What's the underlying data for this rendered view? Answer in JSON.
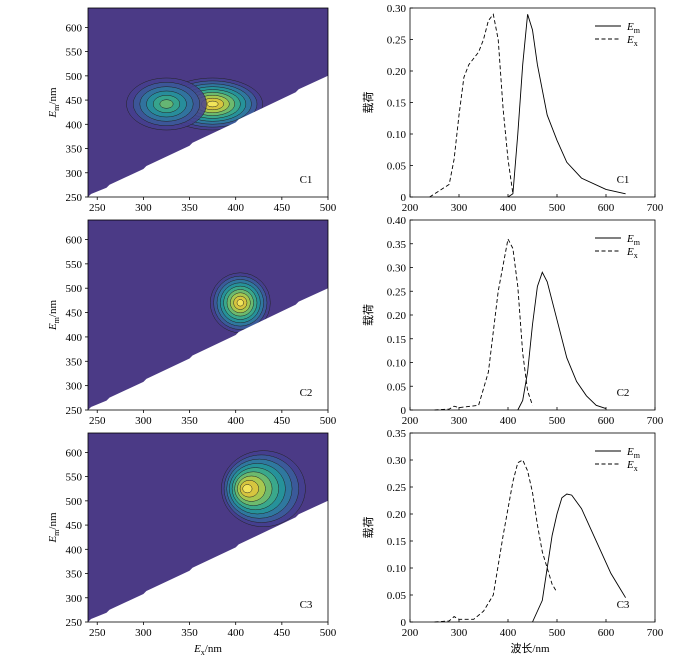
{
  "figure": {
    "contour_xlabel": "Ex/nm",
    "contour_ylabel": "Em/nm",
    "loading_ylabel": "载荷",
    "loading_xlabel": "波长/nm",
    "legend": {
      "em": "Em",
      "ex": "Ex"
    }
  },
  "colors": {
    "background": "#4b3a86",
    "levels": [
      "#4b3a86",
      "#453f8f",
      "#3b5a9a",
      "#2f789f",
      "#26929a",
      "#3aa88b",
      "#6dba6e",
      "#a8c84f",
      "#d7c53f",
      "#f2e45a"
    ]
  },
  "chart_data": [
    {
      "type": "heatmap",
      "label": "C1",
      "xlim": [
        240,
        500
      ],
      "ylim": [
        250,
        640
      ],
      "xticks": [
        250,
        300,
        350,
        400,
        450,
        500
      ],
      "yticks": [
        250,
        300,
        350,
        400,
        450,
        500,
        550,
        600
      ],
      "peaks": [
        {
          "ex": 375,
          "em": 442,
          "amp": 1.0
        },
        {
          "ex": 325,
          "em": 442,
          "amp": 0.75
        }
      ]
    },
    {
      "type": "line",
      "label": "C1",
      "xlim": [
        200,
        700
      ],
      "ylim": [
        0,
        0.3
      ],
      "xticks": [
        200,
        300,
        400,
        500,
        600,
        700
      ],
      "yticks": [
        0,
        0.05,
        0.1,
        0.15,
        0.2,
        0.25,
        0.3
      ],
      "series": [
        {
          "name": "Em",
          "style": "solid",
          "points": [
            [
              400,
              0
            ],
            [
              410,
              0.005
            ],
            [
              420,
              0.1
            ],
            [
              430,
              0.21
            ],
            [
              440,
              0.29
            ],
            [
              450,
              0.265
            ],
            [
              460,
              0.21
            ],
            [
              480,
              0.13
            ],
            [
              500,
              0.09
            ],
            [
              520,
              0.055
            ],
            [
              550,
              0.03
            ],
            [
              600,
              0.012
            ],
            [
              640,
              0.005
            ]
          ]
        },
        {
          "name": "Ex",
          "style": "dashed",
          "points": [
            [
              240,
              0
            ],
            [
              260,
              0.01
            ],
            [
              280,
              0.02
            ],
            [
              290,
              0.06
            ],
            [
              300,
              0.13
            ],
            [
              310,
              0.19
            ],
            [
              320,
              0.21
            ],
            [
              340,
              0.23
            ],
            [
              350,
              0.25
            ],
            [
              360,
              0.28
            ],
            [
              370,
              0.29
            ],
            [
              380,
              0.25
            ],
            [
              390,
              0.14
            ],
            [
              400,
              0.06
            ],
            [
              410,
              0.005
            ]
          ]
        }
      ]
    },
    {
      "type": "heatmap",
      "label": "C2",
      "xlim": [
        240,
        500
      ],
      "ylim": [
        250,
        640
      ],
      "xticks": [
        250,
        300,
        350,
        400,
        450,
        500
      ],
      "yticks": [
        250,
        300,
        350,
        400,
        450,
        500,
        550,
        600
      ],
      "peaks": [
        {
          "ex": 405,
          "em": 470,
          "amp": 1.0
        }
      ]
    },
    {
      "type": "line",
      "label": "C2",
      "xlim": [
        200,
        700
      ],
      "ylim": [
        0,
        0.4
      ],
      "xticks": [
        200,
        300,
        400,
        500,
        600,
        700
      ],
      "yticks": [
        0,
        0.05,
        0.1,
        0.15,
        0.2,
        0.25,
        0.3,
        0.35,
        0.4
      ],
      "series": [
        {
          "name": "Em",
          "style": "solid",
          "points": [
            [
              420,
              0
            ],
            [
              430,
              0.02
            ],
            [
              440,
              0.08
            ],
            [
              450,
              0.18
            ],
            [
              460,
              0.26
            ],
            [
              470,
              0.29
            ],
            [
              480,
              0.27
            ],
            [
              500,
              0.19
            ],
            [
              520,
              0.11
            ],
            [
              540,
              0.06
            ],
            [
              560,
              0.03
            ],
            [
              580,
              0.01
            ],
            [
              600,
              0.003
            ]
          ]
        },
        {
          "name": "Ex",
          "style": "dashed",
          "points": [
            [
              250,
              0
            ],
            [
              280,
              0.002
            ],
            [
              290,
              0.008
            ],
            [
              300,
              0.005
            ],
            [
              340,
              0.01
            ],
            [
              360,
              0.08
            ],
            [
              380,
              0.25
            ],
            [
              400,
              0.36
            ],
            [
              410,
              0.34
            ],
            [
              420,
              0.26
            ],
            [
              430,
              0.12
            ],
            [
              440,
              0.04
            ],
            [
              450,
              0.01
            ]
          ]
        }
      ]
    },
    {
      "type": "heatmap",
      "label": "C3",
      "xlim": [
        240,
        500
      ],
      "ylim": [
        250,
        640
      ],
      "xticks": [
        250,
        300,
        350,
        400,
        450,
        500
      ],
      "yticks": [
        250,
        300,
        350,
        400,
        450,
        500,
        550,
        600
      ],
      "peaks": [
        {
          "ex": 430,
          "em": 525,
          "amp": 1.0
        }
      ]
    },
    {
      "type": "line",
      "label": "C3",
      "xlim": [
        200,
        700
      ],
      "ylim": [
        0,
        0.35
      ],
      "xticks": [
        200,
        300,
        400,
        500,
        600,
        700
      ],
      "yticks": [
        0,
        0.05,
        0.1,
        0.15,
        0.2,
        0.25,
        0.3,
        0.35
      ],
      "series": [
        {
          "name": "Em",
          "style": "solid",
          "points": [
            [
              450,
              0
            ],
            [
              470,
              0.04
            ],
            [
              480,
              0.1
            ],
            [
              490,
              0.16
            ],
            [
              500,
              0.2
            ],
            [
              510,
              0.23
            ],
            [
              520,
              0.237
            ],
            [
              530,
              0.235
            ],
            [
              550,
              0.21
            ],
            [
              570,
              0.17
            ],
            [
              590,
              0.13
            ],
            [
              610,
              0.09
            ],
            [
              630,
              0.06
            ],
            [
              640,
              0.045
            ]
          ]
        },
        {
          "name": "Ex",
          "style": "dashed",
          "points": [
            [
              250,
              0
            ],
            [
              280,
              0.002
            ],
            [
              290,
              0.01
            ],
            [
              300,
              0.005
            ],
            [
              330,
              0.005
            ],
            [
              350,
              0.02
            ],
            [
              370,
              0.05
            ],
            [
              390,
              0.16
            ],
            [
              410,
              0.26
            ],
            [
              420,
              0.295
            ],
            [
              430,
              0.3
            ],
            [
              440,
              0.28
            ],
            [
              450,
              0.24
            ],
            [
              460,
              0.18
            ],
            [
              470,
              0.13
            ],
            [
              480,
              0.1
            ],
            [
              490,
              0.07
            ],
            [
              500,
              0.055
            ]
          ]
        }
      ]
    }
  ]
}
